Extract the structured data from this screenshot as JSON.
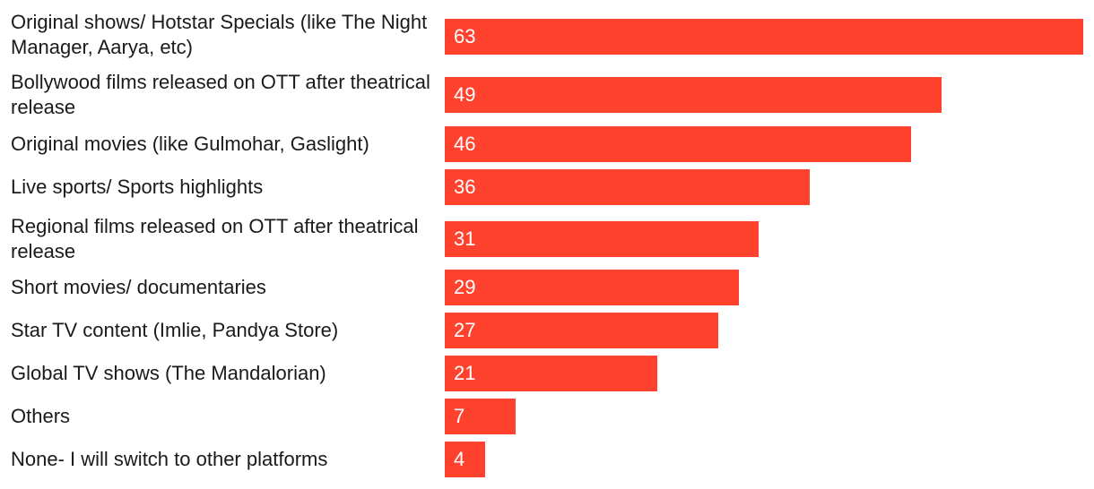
{
  "chart_data": {
    "type": "bar",
    "orientation": "horizontal",
    "categories": [
      "Original shows/ Hotstar Specials (like The Night Manager, Aarya, etc)",
      "Bollywood films released on OTT after theatrical release",
      "Original movies (like Gulmohar, Gaslight)",
      "Live sports/ Sports highlights",
      "Regional films released on OTT after theatrical release",
      "Short movies/ documentaries",
      "Star TV content (Imlie, Pandya Store)",
      "Global TV shows (The Mandalorian)",
      "Others",
      "None- I will switch to other platforms"
    ],
    "values": [
      63,
      49,
      46,
      36,
      31,
      29,
      27,
      21,
      7,
      4
    ],
    "title": "",
    "xlabel": "",
    "ylabel": "",
    "xlim": [
      0,
      63
    ],
    "grid": false,
    "legend": "none",
    "data_labels": "inside-left"
  },
  "colors": {
    "bar": "#ff422e",
    "label_text": "#1a1a1a",
    "value_text": "#ffffff"
  }
}
